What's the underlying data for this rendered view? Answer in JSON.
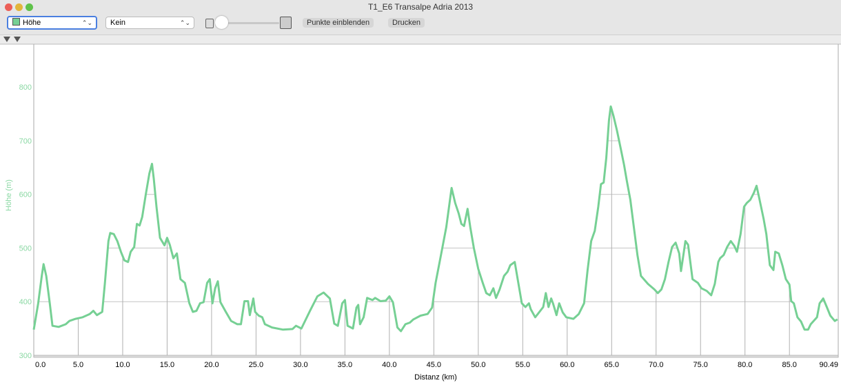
{
  "window": {
    "title": "T1_E6 Transalpe Adria 2013",
    "compare_select": "Kein",
    "buttons": [
      "Punkte einblenden",
      "Drucken"
    ]
  },
  "chart_data": {
    "type": "line",
    "x_label": "Distanz (km)",
    "y_label": "Höhe (m)",
    "x": [
      0.0,
      0.5,
      0.9,
      1.1,
      1.4,
      1.8,
      2.1,
      2.8,
      3.6,
      4.0,
      4.7,
      5.5,
      6.3,
      6.7,
      7.1,
      7.7,
      8.0,
      8.4,
      8.6,
      9.0,
      9.4,
      9.8,
      10.2,
      10.6,
      10.9,
      11.3,
      11.6,
      11.9,
      12.2,
      12.6,
      13.0,
      13.3,
      13.5,
      13.8,
      14.2,
      14.7,
      15.0,
      15.3,
      15.7,
      16.1,
      16.5,
      17.0,
      17.5,
      17.9,
      18.3,
      18.7,
      19.1,
      19.5,
      19.8,
      20.1,
      20.4,
      20.7,
      21.0,
      21.6,
      22.2,
      22.9,
      23.3,
      23.7,
      24.1,
      24.3,
      24.7,
      24.9,
      25.3,
      25.7,
      26.0,
      26.8,
      28.0,
      29.1,
      29.5,
      30.1,
      31.1,
      31.9,
      32.6,
      33.3,
      33.8,
      34.2,
      34.7,
      35.0,
      35.3,
      35.9,
      36.3,
      36.5,
      36.7,
      37.1,
      37.5,
      38.1,
      38.4,
      39.0,
      39.6,
      40.0,
      40.4,
      40.9,
      41.3,
      41.8,
      42.3,
      42.7,
      43.5,
      44.3,
      44.8,
      45.2,
      45.8,
      46.4,
      47.0,
      47.4,
      47.8,
      48.1,
      48.4,
      48.8,
      49.1,
      49.5,
      50.0,
      50.5,
      50.9,
      51.3,
      51.7,
      52.0,
      52.4,
      52.9,
      53.3,
      53.6,
      54.1,
      54.5,
      54.9,
      55.3,
      55.7,
      55.9,
      56.4,
      56.7,
      57.3,
      57.6,
      57.9,
      58.2,
      58.4,
      58.8,
      59.1,
      59.5,
      59.9,
      60.7,
      61.3,
      61.9,
      62.3,
      62.7,
      63.1,
      63.5,
      63.8,
      64.1,
      64.4,
      64.7,
      64.9,
      65.2,
      65.6,
      66.0,
      66.4,
      66.7,
      67.1,
      67.5,
      67.9,
      68.3,
      69.1,
      69.8,
      70.2,
      70.6,
      71.0,
      71.4,
      71.8,
      72.2,
      72.6,
      72.8,
      73.1,
      73.3,
      73.6,
      73.9,
      74.1,
      74.7,
      75.1,
      75.7,
      76.2,
      76.6,
      77.0,
      77.2,
      77.6,
      78.0,
      78.4,
      78.8,
      79.1,
      79.5,
      79.9,
      80.2,
      80.6,
      81.0,
      81.3,
      81.6,
      82.1,
      82.4,
      82.8,
      83.2,
      83.4,
      83.8,
      84.2,
      84.6,
      85.0,
      85.2,
      85.5,
      85.9,
      86.3,
      86.7,
      87.1,
      87.4,
      88.1,
      88.4,
      88.8,
      89.2,
      89.6,
      90.1,
      90.4
    ],
    "series": [
      {
        "name": "Höhe",
        "color": "#76d094",
        "values": [
          348,
          397,
          448,
          470,
          448,
          397,
          355,
          353,
          358,
          364,
          368,
          371,
          377,
          383,
          375,
          381,
          435,
          513,
          528,
          526,
          513,
          493,
          477,
          474,
          493,
          502,
          545,
          542,
          558,
          600,
          639,
          657,
          629,
          577,
          519,
          505,
          519,
          506,
          481,
          490,
          442,
          435,
          397,
          381,
          383,
          397,
          399,
          435,
          442,
          397,
          425,
          438,
          399,
          381,
          364,
          358,
          358,
          401,
          401,
          375,
          406,
          381,
          374,
          371,
          358,
          352,
          348,
          349,
          355,
          350,
          384,
          410,
          417,
          406,
          359,
          355,
          397,
          403,
          355,
          350,
          389,
          394,
          358,
          371,
          407,
          403,
          407,
          401,
          402,
          410,
          399,
          352,
          345,
          358,
          361,
          367,
          374,
          377,
          389,
          435,
          487,
          539,
          612,
          584,
          564,
          545,
          541,
          573,
          539,
          500,
          461,
          435,
          416,
          412,
          425,
          407,
          423,
          448,
          456,
          468,
          474,
          435,
          397,
          390,
          397,
          386,
          371,
          377,
          390,
          416,
          390,
          406,
          397,
          375,
          397,
          380,
          371,
          368,
          377,
          397,
          459,
          513,
          532,
          577,
          619,
          622,
          668,
          738,
          764,
          747,
          719,
          687,
          655,
          626,
          590,
          539,
          487,
          448,
          433,
          423,
          416,
          423,
          442,
          474,
          502,
          510,
          490,
          457,
          490,
          513,
          506,
          468,
          442,
          435,
          425,
          420,
          412,
          433,
          474,
          481,
          487,
          502,
          513,
          504,
          493,
          526,
          577,
          584,
          590,
          603,
          616,
          593,
          554,
          526,
          468,
          459,
          493,
          490,
          468,
          442,
          432,
          401,
          397,
          371,
          363,
          348,
          348,
          358,
          371,
          397,
          406,
          390,
          374,
          364,
          367
        ]
      }
    ],
    "xlim": [
      0,
      90.49
    ],
    "xticks": [
      {
        "value": 0,
        "label": "0.0"
      },
      {
        "value": 5,
        "label": "5.0"
      },
      {
        "value": 10,
        "label": "10.0"
      },
      {
        "value": 15,
        "label": "15.0"
      },
      {
        "value": 20,
        "label": "20.0"
      },
      {
        "value": 25,
        "label": "25.0"
      },
      {
        "value": 30,
        "label": "30.0"
      },
      {
        "value": 35,
        "label": "35.0"
      },
      {
        "value": 40,
        "label": "40.0"
      },
      {
        "value": 45,
        "label": "45.0"
      },
      {
        "value": 50,
        "label": "50.0"
      },
      {
        "value": 55,
        "label": "55.0"
      },
      {
        "value": 60,
        "label": "60.0"
      },
      {
        "value": 65,
        "label": "65.0"
      },
      {
        "value": 70,
        "label": "70.0"
      },
      {
        "value": 75,
        "label": "75.0"
      },
      {
        "value": 80,
        "label": "80.0"
      },
      {
        "value": 85,
        "label": "85.0"
      },
      90.49
    ],
    "ylim": [
      300,
      880
    ],
    "yticks": [
      300,
      400,
      500,
      600,
      700,
      800
    ],
    "grid": true
  }
}
